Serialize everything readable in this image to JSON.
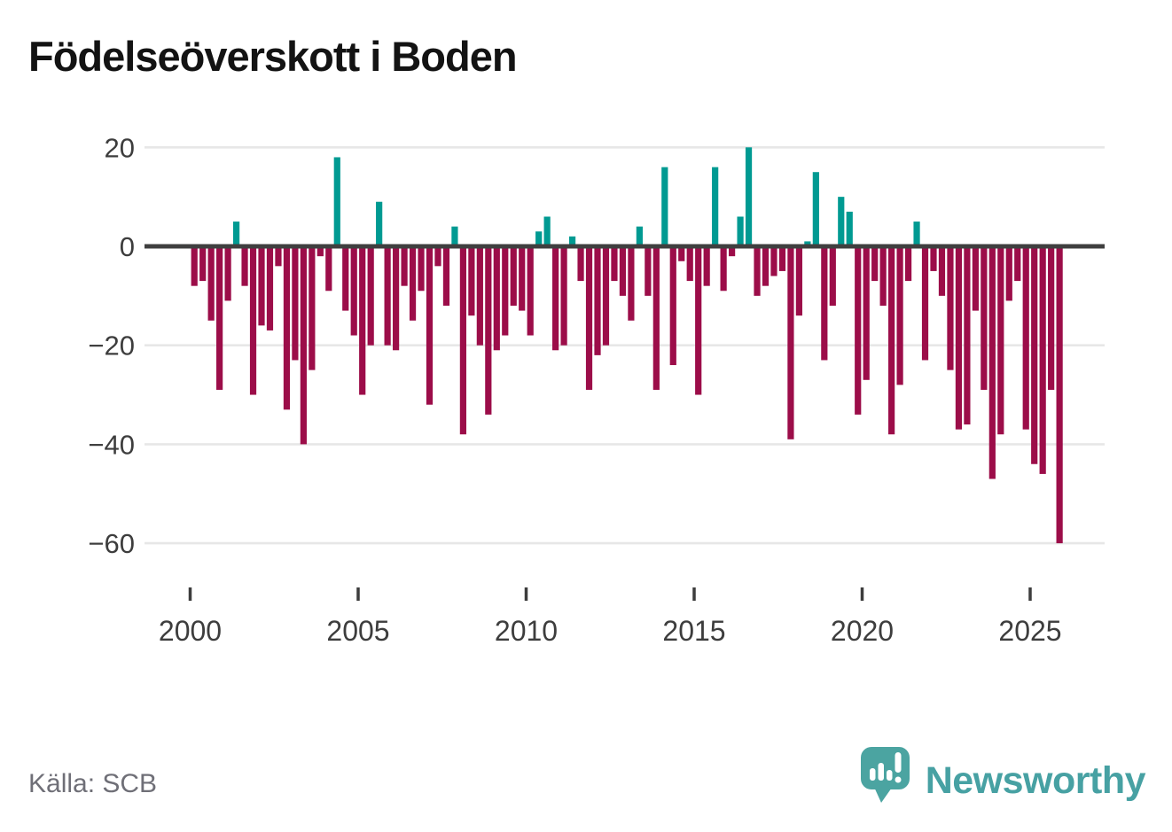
{
  "title": "Födelseöverskott i Boden",
  "source": "Källa: SCB",
  "branding": {
    "name": "Newsworthy"
  },
  "colors": {
    "positive": "#009a92",
    "negative": "#9c0d49",
    "zero_axis": "#3f3f3f",
    "grid": "#e7e7e7",
    "tick_text": "#3d3d3d",
    "title_text": "#131313",
    "source_text": "#6f6f77",
    "brand_teal": "#47a1a3"
  },
  "chart_data": {
    "type": "bar",
    "title": "Födelseöverskott i Boden",
    "frequency": "quarterly",
    "start_quarter": "2000Q1",
    "end_quarter": "2025Q4",
    "categories": [
      "2000Q1",
      "2000Q2",
      "2000Q3",
      "2000Q4",
      "2001Q1",
      "2001Q2",
      "2001Q3",
      "2001Q4",
      "2002Q1",
      "2002Q2",
      "2002Q3",
      "2002Q4",
      "2003Q1",
      "2003Q2",
      "2003Q3",
      "2003Q4",
      "2004Q1",
      "2004Q2",
      "2004Q3",
      "2004Q4",
      "2005Q1",
      "2005Q2",
      "2005Q3",
      "2005Q4",
      "2006Q1",
      "2006Q2",
      "2006Q3",
      "2006Q4",
      "2007Q1",
      "2007Q2",
      "2007Q3",
      "2007Q4",
      "2008Q1",
      "2008Q2",
      "2008Q3",
      "2008Q4",
      "2009Q1",
      "2009Q2",
      "2009Q3",
      "2009Q4",
      "2010Q1",
      "2010Q2",
      "2010Q3",
      "2010Q4",
      "2011Q1",
      "2011Q2",
      "2011Q3",
      "2011Q4",
      "2012Q1",
      "2012Q2",
      "2012Q3",
      "2012Q4",
      "2013Q1",
      "2013Q2",
      "2013Q3",
      "2013Q4",
      "2014Q1",
      "2014Q2",
      "2014Q3",
      "2014Q4",
      "2015Q1",
      "2015Q2",
      "2015Q3",
      "2015Q4",
      "2016Q1",
      "2016Q2",
      "2016Q3",
      "2016Q4",
      "2017Q1",
      "2017Q2",
      "2017Q3",
      "2017Q4",
      "2018Q1",
      "2018Q2",
      "2018Q3",
      "2018Q4",
      "2019Q1",
      "2019Q2",
      "2019Q3",
      "2019Q4",
      "2020Q1",
      "2020Q2",
      "2020Q3",
      "2020Q4",
      "2021Q1",
      "2021Q2",
      "2021Q3",
      "2021Q4",
      "2022Q1",
      "2022Q2",
      "2022Q3",
      "2022Q4",
      "2023Q1",
      "2023Q2",
      "2023Q3",
      "2023Q4",
      "2024Q1",
      "2024Q2",
      "2024Q3",
      "2024Q4",
      "2025Q1",
      "2025Q2",
      "2025Q3",
      "2025Q4"
    ],
    "values": [
      -8,
      -7,
      -15,
      -29,
      -11,
      5,
      -8,
      -30,
      -16,
      -17,
      -4,
      -33,
      -23,
      -40,
      -25,
      -2,
      -9,
      18,
      -13,
      -18,
      -30,
      -20,
      9,
      -20,
      -21,
      -8,
      -15,
      -9,
      -32,
      -4,
      -12,
      4,
      -38,
      -14,
      -20,
      -34,
      -21,
      -18,
      -12,
      -13,
      -18,
      3,
      6,
      -21,
      -20,
      2,
      -7,
      -29,
      -22,
      -20,
      -7,
      -10,
      -15,
      4,
      -10,
      -29,
      16,
      -24,
      -3,
      -7,
      -30,
      -8,
      16,
      -9,
      -2,
      6,
      20,
      -10,
      -8,
      -6,
      -5,
      -39,
      -14,
      1,
      15,
      -23,
      -12,
      10,
      7,
      -34,
      -27,
      -7,
      -12,
      -38,
      -28,
      -7,
      5,
      -23,
      -5,
      -10,
      -25,
      -37,
      -36,
      -13,
      -29,
      -47,
      -38,
      -11,
      -7,
      -37,
      -44,
      -46,
      -29,
      -60
    ],
    "xticks": [
      2000,
      2005,
      2010,
      2015,
      2020,
      2025
    ],
    "xtick_labels": [
      "2000",
      "2005",
      "2010",
      "2015",
      "2020",
      "2025"
    ],
    "yticks": [
      20,
      0,
      -20,
      -40,
      -60
    ],
    "ytick_labels": [
      "20",
      "0",
      "−20",
      "−40",
      "−60"
    ],
    "ylim": [
      -64,
      23
    ],
    "grid": "horizontal",
    "legend": "none"
  }
}
